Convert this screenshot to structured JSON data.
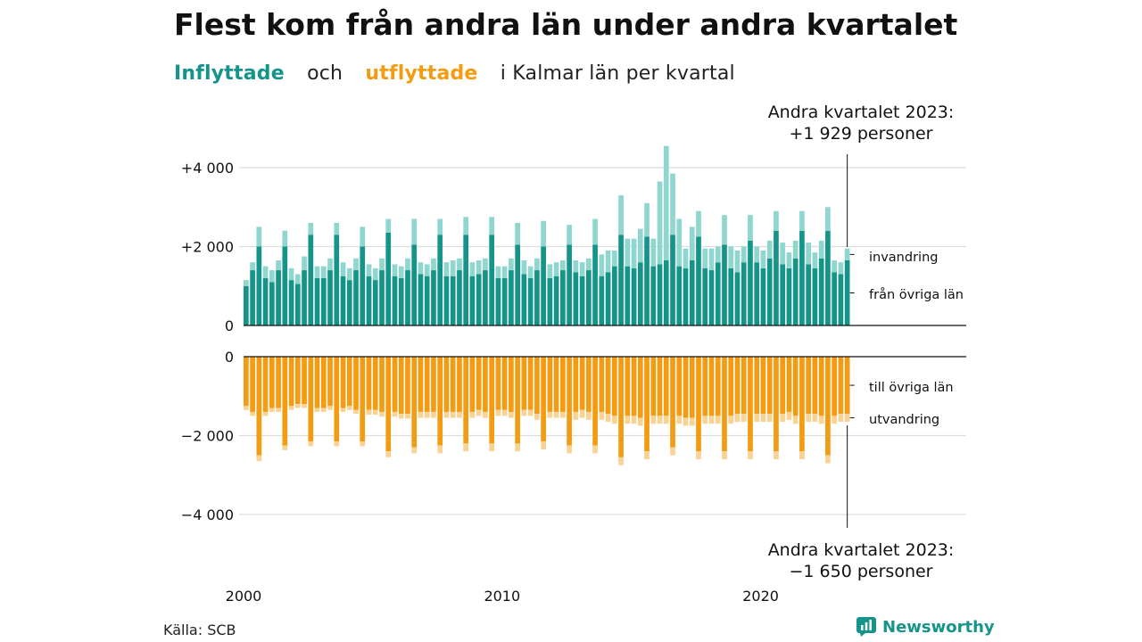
{
  "title": "Flest kom från andra län under andra kvartalet",
  "subtitle": {
    "in": "Inflyttade",
    "and": "och",
    "out": "utflyttade",
    "rest": "i Kalmar län per kvartal"
  },
  "annotation_top": {
    "line1": "Andra kvartalet 2023:",
    "line2": "+1 929 personer"
  },
  "annotation_bottom": {
    "line1": "Andra kvartalet 2023:",
    "line2": "−1 650 personer"
  },
  "source": "Källa: SCB",
  "brand": "Newsworthy",
  "colors": {
    "in_main": "#15958a",
    "in_light": "#8fd6cf",
    "out_main": "#f39c12",
    "out_light": "#f8d394",
    "grid": "#dddddd",
    "axis": "#111111"
  },
  "chart_data": {
    "type": "bar",
    "x_start": "2000 Q1",
    "x_ticks": [
      "2000",
      "2010",
      "2020"
    ],
    "y_ticks_upper": [
      "+4 000",
      "+2 000",
      "0"
    ],
    "y_ticks_lower": [
      "0",
      "−2 000",
      "−4 000"
    ],
    "ylim_upper": [
      0,
      4000
    ],
    "ylim_lower": [
      -4000,
      0
    ],
    "series": [
      {
        "name": "från övriga län",
        "values": [
          1000,
          1400,
          2000,
          1200,
          1100,
          1400,
          2000,
          1150,
          1050,
          1400,
          2300,
          1200,
          1200,
          1400,
          2300,
          1250,
          1150,
          1400,
          2000,
          1250,
          1150,
          1400,
          2350,
          1250,
          1200,
          1400,
          2050,
          1300,
          1250,
          1400,
          2300,
          1250,
          1250,
          1400,
          2300,
          1250,
          1300,
          1400,
          2300,
          1200,
          1200,
          1400,
          2050,
          1300,
          1200,
          1400,
          2000,
          1200,
          1250,
          1400,
          2050,
          1350,
          1250,
          1400,
          2050,
          1250,
          1350,
          1500,
          2300,
          1500,
          1450,
          1600,
          2250,
          1500,
          1550,
          1650,
          2300,
          1500,
          1450,
          1650,
          2250,
          1450,
          1400,
          1600,
          2050,
          1450,
          1350,
          1600,
          2150,
          1600,
          1450,
          1700,
          2400,
          1550,
          1450,
          1700,
          2400,
          1550,
          1450,
          1700,
          2400,
          1350,
          1300,
          1650
        ],
        "color": "#15958a"
      },
      {
        "name": "invandring",
        "values": [
          150,
          200,
          500,
          300,
          300,
          250,
          400,
          300,
          250,
          350,
          300,
          300,
          300,
          300,
          300,
          350,
          300,
          300,
          500,
          300,
          300,
          300,
          350,
          300,
          300,
          300,
          650,
          300,
          300,
          300,
          400,
          350,
          400,
          300,
          450,
          350,
          350,
          300,
          450,
          300,
          300,
          300,
          550,
          350,
          300,
          300,
          650,
          350,
          350,
          250,
          500,
          300,
          350,
          300,
          650,
          550,
          550,
          400,
          1000,
          700,
          750,
          850,
          850,
          700,
          2100,
          2900,
          1550,
          1200,
          500,
          850,
          650,
          500,
          550,
          400,
          750,
          550,
          550,
          400,
          650,
          400,
          450,
          450,
          500,
          550,
          400,
          450,
          500,
          550,
          400,
          450,
          600,
          300,
          300,
          300
        ],
        "color": "#8fd6cf"
      },
      {
        "name": "till övriga län",
        "values": [
          -1250,
          -1400,
          -2500,
          -1400,
          -1300,
          -1300,
          -2250,
          -1250,
          -1200,
          -1200,
          -2150,
          -1300,
          -1300,
          -1250,
          -2150,
          -1300,
          -1250,
          -1350,
          -2150,
          -1350,
          -1350,
          -1400,
          -2400,
          -1400,
          -1450,
          -1450,
          -2300,
          -1400,
          -1400,
          -1400,
          -2250,
          -1400,
          -1400,
          -1400,
          -2200,
          -1400,
          -1350,
          -1400,
          -2200,
          -1350,
          -1350,
          -1400,
          -2200,
          -1350,
          -1350,
          -1450,
          -2150,
          -1400,
          -1400,
          -1400,
          -2250,
          -1400,
          -1350,
          -1400,
          -2250,
          -1400,
          -1450,
          -1500,
          -2550,
          -1500,
          -1500,
          -1550,
          -2400,
          -1500,
          -1500,
          -1500,
          -2300,
          -1500,
          -1550,
          -1550,
          -2400,
          -1500,
          -1500,
          -1500,
          -2400,
          -1500,
          -1450,
          -1450,
          -2400,
          -1450,
          -1450,
          -1450,
          -2400,
          -1450,
          -1400,
          -1500,
          -2400,
          -1450,
          -1450,
          -1500,
          -2500,
          -1500,
          -1450,
          -1450
        ],
        "color": "#f39c12"
      },
      {
        "name": "utvandring",
        "values": [
          -100,
          -100,
          -150,
          -100,
          -100,
          -100,
          -120,
          -100,
          -100,
          -100,
          -120,
          -100,
          -100,
          -100,
          -120,
          -100,
          -100,
          -100,
          -120,
          -120,
          -120,
          -120,
          -150,
          -120,
          -120,
          -120,
          -150,
          -150,
          -150,
          -150,
          -200,
          -150,
          -150,
          -150,
          -200,
          -150,
          -150,
          -150,
          -200,
          -150,
          -150,
          -150,
          -200,
          -150,
          -150,
          -150,
          -200,
          -150,
          -150,
          -150,
          -200,
          -200,
          -200,
          -200,
          -200,
          -200,
          -200,
          -200,
          -200,
          -200,
          -200,
          -200,
          -200,
          -200,
          -200,
          -200,
          -200,
          -200,
          -200,
          -200,
          -200,
          -200,
          -200,
          -200,
          -200,
          -200,
          -200,
          -200,
          -200,
          -200,
          -200,
          -200,
          -200,
          -200,
          -200,
          -200,
          -200,
          -200,
          -200,
          -200,
          -200,
          -200,
          -200,
          -200
        ],
        "color": "#f8d394"
      }
    ],
    "legend_upper": [
      "invandring",
      "från övriga län"
    ],
    "legend_lower": [
      "till övriga län",
      "utvandring"
    ]
  }
}
